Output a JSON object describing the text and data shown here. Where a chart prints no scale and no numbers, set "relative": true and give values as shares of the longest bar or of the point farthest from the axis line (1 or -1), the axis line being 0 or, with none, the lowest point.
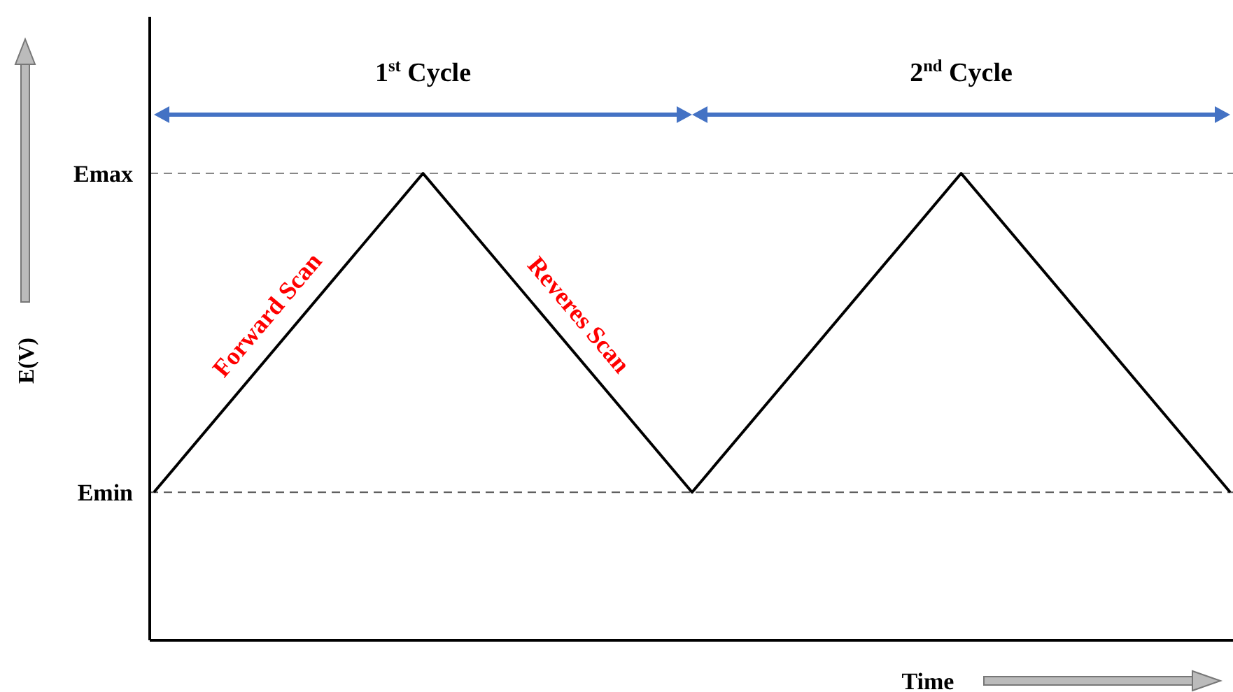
{
  "chart_data": {
    "type": "line",
    "relative": true,
    "xlabel": "Time",
    "ylabel": "E(V)",
    "categories": [
      null,
      null,
      null,
      null,
      null
    ],
    "series": [
      {
        "color": "#000000",
        "values": [
          0.317,
          1,
          0.317,
          1,
          0.317
        ]
      }
    ],
    "ref_lines": [
      {
        "axis": "y",
        "value": 0.317,
        "label": "Emin",
        "color": "#555555",
        "line_style": "dashed"
      },
      {
        "axis": "y",
        "value": 1,
        "label": "Emax",
        "color": "#888888",
        "line_style": "dashed"
      }
    ],
    "annotations": [
      "1$^{st}$ Cycle",
      "2$^{nd}$ Cycle",
      "Forward Scan",
      "Reveres Scan"
    ],
    "marker": "none",
    "line_style": "solid"
  }
}
